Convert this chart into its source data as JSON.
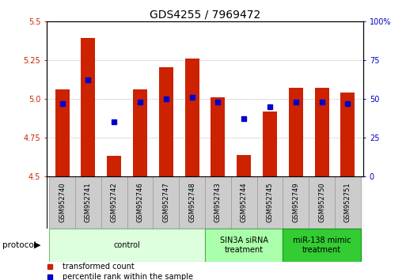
{
  "title": "GDS4255 / 7969472",
  "samples": [
    "GSM952740",
    "GSM952741",
    "GSM952742",
    "GSM952746",
    "GSM952747",
    "GSM952748",
    "GSM952743",
    "GSM952744",
    "GSM952745",
    "GSM952749",
    "GSM952750",
    "GSM952751"
  ],
  "bar_values": [
    5.06,
    5.39,
    4.63,
    5.06,
    5.2,
    5.26,
    5.01,
    4.64,
    4.92,
    5.07,
    5.07,
    5.04
  ],
  "percentile_values": [
    47,
    62,
    35,
    48,
    50,
    51,
    48,
    37,
    45,
    48,
    48,
    47
  ],
  "ymin": 4.5,
  "ymax": 5.5,
  "y_ticks_left": [
    4.5,
    4.75,
    5.0,
    5.25,
    5.5
  ],
  "y_ticks_right": [
    0,
    25,
    50,
    75,
    100
  ],
  "bar_color": "#cc2200",
  "percentile_color": "#0000cc",
  "bar_width": 0.55,
  "grid_color": "#888888",
  "background_color": "#ffffff",
  "tick_label_fontsize": 7,
  "title_fontsize": 10,
  "group_defs": [
    {
      "start": 0,
      "end": 5,
      "label": "control",
      "fc": "#ddffdd",
      "ec": "#88bb88"
    },
    {
      "start": 6,
      "end": 8,
      "label": "SIN3A siRNA\ntreatment",
      "fc": "#aaffaa",
      "ec": "#55aa55"
    },
    {
      "start": 9,
      "end": 11,
      "label": "miR-138 mimic\ntreatment",
      "fc": "#33cc33",
      "ec": "#119911"
    }
  ]
}
